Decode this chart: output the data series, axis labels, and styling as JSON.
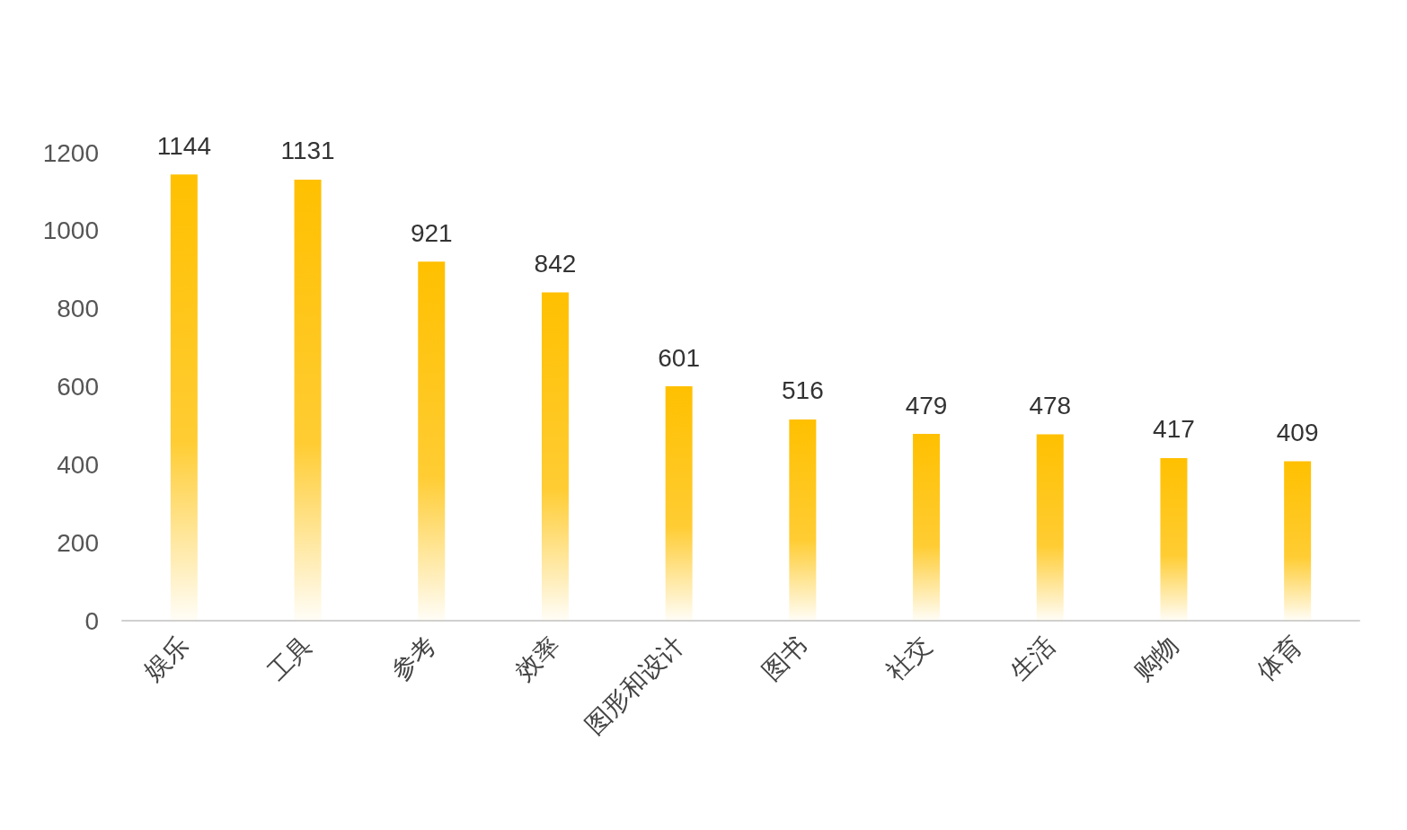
{
  "chart_data": {
    "type": "bar",
    "categories": [
      "娱乐",
      "工具",
      "参考",
      "效率",
      "图形和设计",
      "图书",
      "社交",
      "生活",
      "购物",
      "体育"
    ],
    "values": [
      1144,
      1131,
      921,
      842,
      601,
      516,
      479,
      478,
      417,
      409
    ],
    "color": "#ffc000",
    "ylim": [
      0,
      1200
    ],
    "yticks": [
      0,
      200,
      400,
      600,
      800,
      1000,
      1200
    ],
    "grid": false,
    "data_labels": true
  }
}
